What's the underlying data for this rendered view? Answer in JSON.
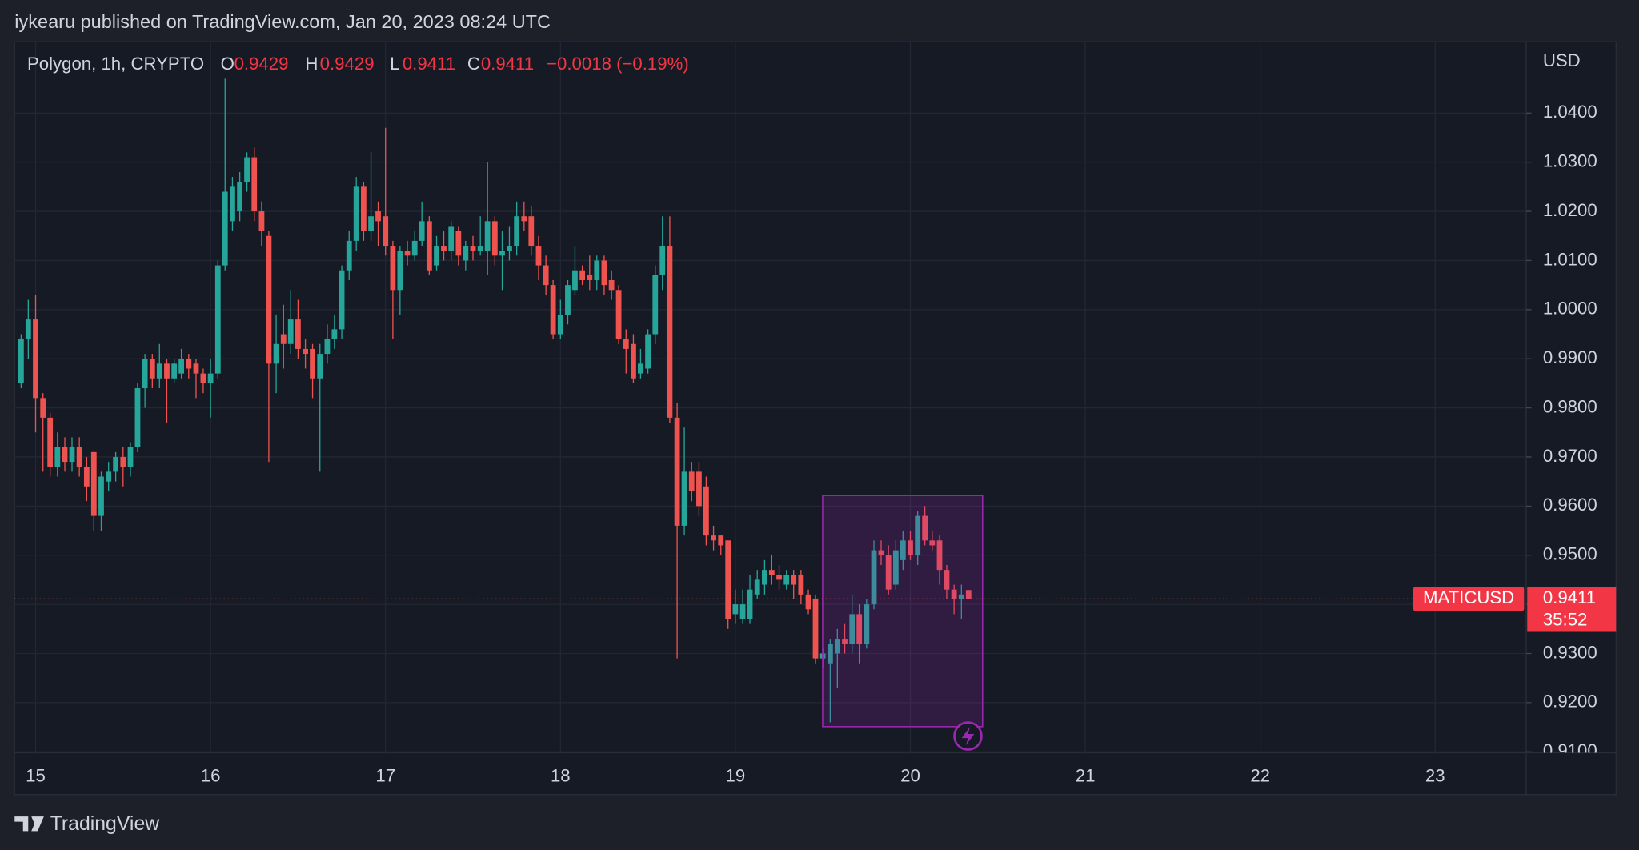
{
  "chart_data": {
    "type": "candlestick",
    "title": "iykearu published on TradingView.com, Jan 20, 2023 08:24 UTC",
    "subtitle": "Polygon, 1h, CRYPTO",
    "ohlc": [
      {
        "key": "O",
        "value": 0.9429
      },
      {
        "key": "H",
        "value": 0.9429
      },
      {
        "key": "L",
        "value": 0.9411
      },
      {
        "key": "C",
        "value": 0.9411
      }
    ],
    "change": "−0.0018 (−0.19%)",
    "y_unit": "USD",
    "countdown": "35:52",
    "footer": "TradingView",
    "up_color": "#26a69a",
    "down_color": "#ef5350",
    "grid": true,
    "xlim": [
      14.88,
      23.52
    ],
    "xticks": [
      15,
      16,
      17,
      18,
      19,
      20,
      21,
      22,
      23
    ],
    "ylim": [
      0.9098,
      1.0545
    ],
    "yticks": [
      {
        "value": 0.91,
        "label": "0.9100"
      },
      {
        "value": 0.92,
        "label": "0.9200"
      },
      {
        "value": 0.93,
        "label": "0.9300"
      },
      {
        "value": 0.94,
        "label": "0.9400"
      },
      {
        "value": 0.95,
        "label": "0.9500"
      },
      {
        "value": 0.96,
        "label": "0.9600"
      },
      {
        "value": 0.97,
        "label": "0.9700"
      },
      {
        "value": 0.98,
        "label": "0.9800"
      },
      {
        "value": 0.99,
        "label": "0.9900"
      },
      {
        "value": 1.0,
        "label": "1.0000"
      },
      {
        "value": 1.01,
        "label": "1.0100"
      },
      {
        "value": 1.02,
        "label": "1.0200"
      },
      {
        "value": 1.03,
        "label": "1.0300"
      },
      {
        "value": 1.04,
        "label": "1.0400"
      }
    ],
    "x": [
      14.917,
      14.958,
      15,
      15.042,
      15.083,
      15.125,
      15.167,
      15.208,
      15.25,
      15.292,
      15.333,
      15.375,
      15.417,
      15.458,
      15.5,
      15.542,
      15.583,
      15.625,
      15.667,
      15.708,
      15.75,
      15.792,
      15.833,
      15.875,
      15.917,
      15.958,
      16,
      16.042,
      16.083,
      16.125,
      16.167,
      16.208,
      16.25,
      16.292,
      16.333,
      16.375,
      16.417,
      16.458,
      16.5,
      16.542,
      16.583,
      16.625,
      16.667,
      16.708,
      16.75,
      16.792,
      16.833,
      16.875,
      16.917,
      16.958,
      17,
      17.042,
      17.083,
      17.125,
      17.167,
      17.208,
      17.25,
      17.292,
      17.333,
      17.375,
      17.417,
      17.458,
      17.5,
      17.542,
      17.583,
      17.625,
      17.667,
      17.708,
      17.75,
      17.792,
      17.833,
      17.875,
      17.917,
      17.958,
      18,
      18.042,
      18.083,
      18.125,
      18.167,
      18.208,
      18.25,
      18.292,
      18.333,
      18.375,
      18.417,
      18.458,
      18.5,
      18.542,
      18.583,
      18.625,
      18.667,
      18.708,
      18.75,
      18.792,
      18.833,
      18.875,
      18.917,
      18.958,
      19,
      19.042,
      19.083,
      19.125,
      19.167,
      19.208,
      19.25,
      19.292,
      19.333,
      19.375,
      19.417,
      19.458,
      19.5,
      19.542,
      19.583,
      19.625,
      19.667,
      19.708,
      19.75,
      19.792,
      19.833,
      19.875,
      19.917,
      19.958,
      20,
      20.042,
      20.083,
      20.125,
      20.167,
      20.208,
      20.25,
      20.292,
      20.333
    ],
    "series": [
      {
        "name": "MATICUSD",
        "open": [
          0.985,
          0.994,
          0.998,
          0.982,
          0.978,
          0.968,
          0.972,
          0.969,
          0.972,
          0.968,
          0.971,
          0.958,
          0.965,
          0.967,
          0.97,
          0.968,
          0.972,
          0.984,
          0.99,
          0.986,
          0.989,
          0.986,
          0.987,
          0.99,
          0.989,
          0.987,
          0.985,
          0.987,
          1.009,
          1.018,
          1.02,
          1.026,
          1.031,
          1.02,
          1.015,
          0.989,
          0.995,
          0.993,
          0.998,
          0.992,
          0.992,
          0.986,
          0.991,
          0.994,
          0.996,
          1.008,
          1.014,
          1.025,
          1.016,
          1.02,
          1.019,
          1.013,
          1.004,
          1.012,
          1.011,
          1.014,
          1.018,
          1.009,
          1.013,
          1.012,
          1.016,
          1.01,
          1.013,
          1.012,
          1.012,
          1.018,
          1.011,
          1.012,
          1.013,
          1.019,
          1.019,
          1.013,
          1.009,
          1.005,
          0.995,
          0.999,
          1.004,
          1.008,
          1.007,
          1.006,
          1.01,
          1.006,
          1.004,
          0.994,
          0.993,
          0.987,
          0.988,
          0.995,
          1.007,
          1.013,
          0.978,
          0.956,
          0.967,
          0.967,
          0.964,
          0.954,
          0.954,
          0.953,
          0.938,
          0.937,
          0.937,
          0.942,
          0.944,
          0.947,
          0.946,
          0.944,
          0.946,
          0.946,
          0.942,
          0.941,
          0.929,
          0.928,
          0.93,
          0.933,
          0.932,
          0.938,
          0.932,
          0.94,
          0.951,
          0.95,
          0.944,
          0.949,
          0.953,
          0.95,
          0.958,
          0.953,
          0.953,
          0.947,
          0.943,
          0.941,
          0.9429
        ],
        "high": [
          0.995,
          1.002,
          1.003,
          0.983,
          0.979,
          0.975,
          0.974,
          0.974,
          0.974,
          0.97,
          0.971,
          0.967,
          0.969,
          0.971,
          0.972,
          0.973,
          0.985,
          0.991,
          0.991,
          0.993,
          0.99,
          0.99,
          0.992,
          0.991,
          0.99,
          0.988,
          0.99,
          1.01,
          1.047,
          1.027,
          1.028,
          1.032,
          1.033,
          1.022,
          1.016,
          0.999,
          1.001,
          1.004,
          1.002,
          0.994,
          0.993,
          0.993,
          0.997,
          0.999,
          1.009,
          1.016,
          1.027,
          1.026,
          1.032,
          1.022,
          1.037,
          1.014,
          1.013,
          1.014,
          1.016,
          1.022,
          1.019,
          1.015,
          1.016,
          1.018,
          1.017,
          1.014,
          1.015,
          1.019,
          1.03,
          1.019,
          1.016,
          1.017,
          1.022,
          1.022,
          1.021,
          1.015,
          1.011,
          1.006,
          1.002,
          1.006,
          1.013,
          1.009,
          1.011,
          1.011,
          1.011,
          1.008,
          1.005,
          0.996,
          0.995,
          0.992,
          0.996,
          1.009,
          1.019,
          1.019,
          0.981,
          0.976,
          0.969,
          0.969,
          0.966,
          0.956,
          0.954,
          0.953,
          0.943,
          0.943,
          0.946,
          0.947,
          0.949,
          0.95,
          0.948,
          0.947,
          0.947,
          0.947,
          0.943,
          0.942,
          0.931,
          0.933,
          0.935,
          0.936,
          0.942,
          0.94,
          0.941,
          0.953,
          0.953,
          0.952,
          0.953,
          0.955,
          0.955,
          0.959,
          0.96,
          0.955,
          0.954,
          0.948,
          0.944,
          0.944,
          0.9429
        ],
        "low": [
          0.984,
          0.99,
          0.975,
          0.967,
          0.966,
          0.966,
          0.967,
          0.967,
          0.966,
          0.961,
          0.955,
          0.955,
          0.963,
          0.965,
          0.964,
          0.966,
          0.971,
          0.98,
          0.984,
          0.984,
          0.977,
          0.985,
          0.986,
          0.986,
          0.982,
          0.983,
          0.978,
          0.986,
          1.008,
          1.016,
          1.018,
          1.024,
          1.018,
          1.013,
          0.969,
          0.983,
          0.988,
          0.991,
          0.99,
          0.988,
          0.982,
          0.967,
          0.989,
          0.992,
          0.994,
          1.006,
          1.012,
          1.014,
          1.014,
          1.013,
          1.011,
          0.994,
          0.999,
          1.009,
          1.01,
          1.013,
          1.007,
          1.008,
          1.01,
          1.01,
          1.009,
          1.008,
          1.01,
          1.011,
          1.007,
          1.009,
          1.004,
          1.01,
          1.011,
          1.016,
          1.011,
          1.006,
          1.003,
          0.994,
          0.994,
          0.997,
          1.003,
          1.005,
          1.004,
          1.004,
          1.003,
          1.002,
          0.993,
          0.987,
          0.985,
          0.986,
          0.987,
          0.993,
          1.004,
          0.977,
          0.929,
          0.954,
          0.961,
          0.958,
          0.952,
          0.951,
          0.95,
          0.935,
          0.936,
          0.936,
          0.936,
          0.941,
          0.942,
          0.944,
          0.943,
          0.943,
          0.941,
          0.94,
          0.938,
          0.928,
          0.927,
          0.916,
          0.923,
          0.93,
          0.93,
          0.928,
          0.931,
          0.939,
          0.948,
          0.942,
          0.943,
          0.947,
          0.949,
          0.948,
          0.952,
          0.951,
          0.944,
          0.941,
          0.938,
          0.937,
          0.9411
        ],
        "close": [
          0.994,
          0.998,
          0.982,
          0.978,
          0.968,
          0.972,
          0.969,
          0.972,
          0.968,
          0.964,
          0.958,
          0.966,
          0.967,
          0.97,
          0.968,
          0.972,
          0.984,
          0.99,
          0.986,
          0.989,
          0.986,
          0.989,
          0.99,
          0.988,
          0.987,
          0.985,
          0.987,
          1.009,
          1.024,
          1.025,
          1.026,
          1.031,
          1.02,
          1.016,
          0.989,
          0.993,
          0.993,
          0.998,
          0.992,
          0.991,
          0.986,
          0.991,
          0.994,
          0.996,
          1.008,
          1.014,
          1.025,
          1.016,
          1.019,
          1.018,
          1.013,
          1.004,
          1.012,
          1.011,
          1.014,
          1.018,
          1.008,
          1.013,
          1.012,
          1.017,
          1.011,
          1.013,
          1.012,
          1.013,
          1.018,
          1.011,
          1.012,
          1.013,
          1.019,
          1.018,
          1.013,
          1.009,
          1.005,
          0.995,
          0.999,
          1.005,
          1.008,
          1.006,
          1.006,
          1.01,
          1.005,
          1.004,
          0.994,
          0.992,
          0.986,
          0.989,
          0.995,
          1.007,
          1.013,
          0.978,
          0.956,
          0.967,
          0.963,
          0.96,
          0.954,
          0.953,
          0.952,
          0.937,
          0.94,
          0.94,
          0.943,
          0.945,
          0.947,
          0.946,
          0.945,
          0.946,
          0.944,
          0.942,
          0.939,
          0.929,
          0.93,
          0.932,
          0.933,
          0.932,
          0.938,
          0.932,
          0.94,
          0.951,
          0.95,
          0.943,
          0.951,
          0.953,
          0.95,
          0.958,
          0.953,
          0.952,
          0.947,
          0.943,
          0.941,
          0.942,
          0.9411
        ]
      }
    ]
  }
}
